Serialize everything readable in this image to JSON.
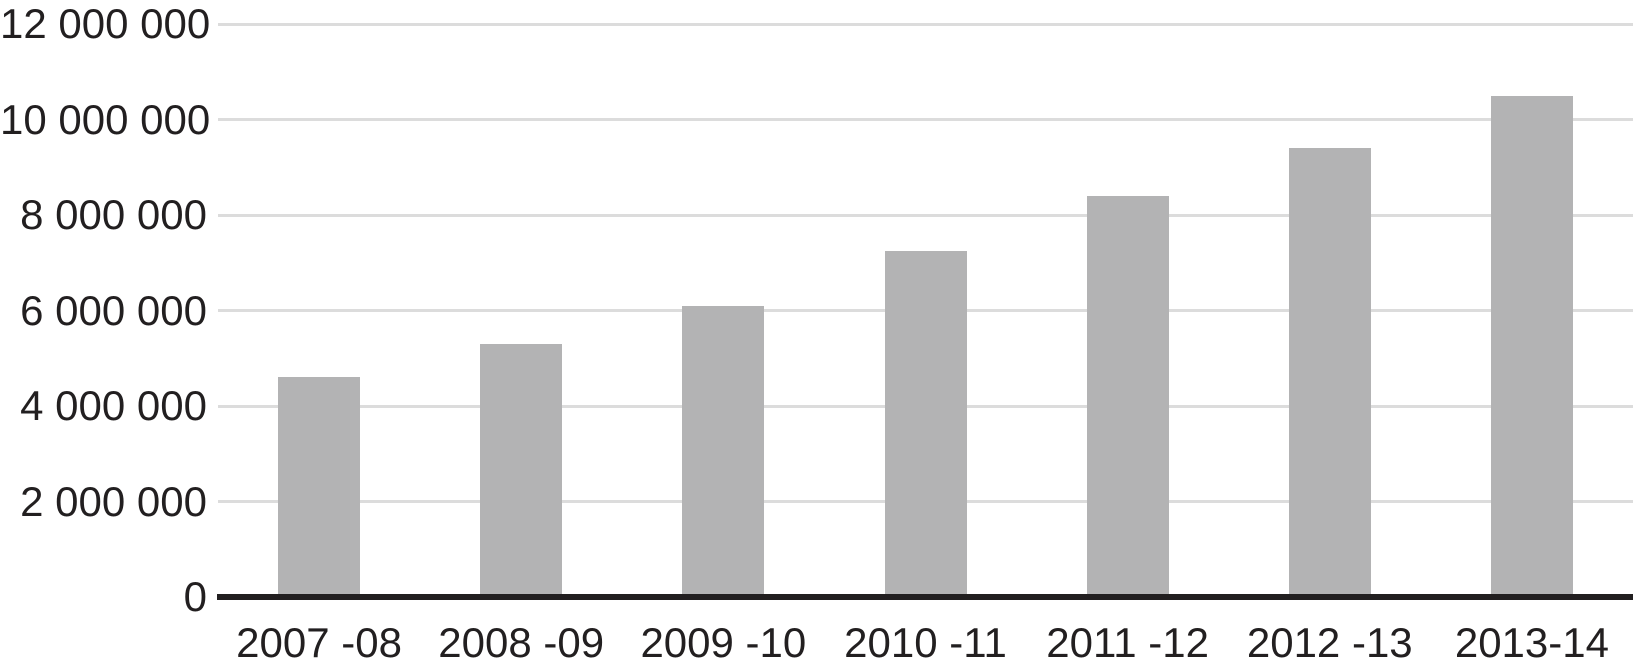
{
  "chart_data": {
    "type": "bar",
    "title": "",
    "xlabel": "",
    "ylabel": "",
    "categories": [
      "2007 -08",
      "2008 -09",
      "2009 -10",
      "2010 -11",
      "2011 -12",
      "2012 -13",
      "2013-14"
    ],
    "values": [
      4600000,
      5300000,
      6100000,
      7250000,
      8400000,
      9400000,
      10500000
    ],
    "ylim": [
      0,
      12000000
    ],
    "y_ticks": [
      {
        "value": 12000000,
        "label": "12 000 000"
      },
      {
        "value": 10000000,
        "label": "10 000 000"
      },
      {
        "value": 8000000,
        "label": "8 000 000"
      },
      {
        "value": 6000000,
        "label": "6 000 000"
      },
      {
        "value": 4000000,
        "label": "4 000 000"
      },
      {
        "value": 2000000,
        "label": "2 000 000"
      },
      {
        "value": 0,
        "label": "0"
      }
    ],
    "grid": true,
    "legend": false,
    "bar_color": "#b3b3b4",
    "gridline_color": "#dcdcdc",
    "axis_color": "#221f20",
    "text_color": "#221f20",
    "background_color": "#ffffff"
  }
}
